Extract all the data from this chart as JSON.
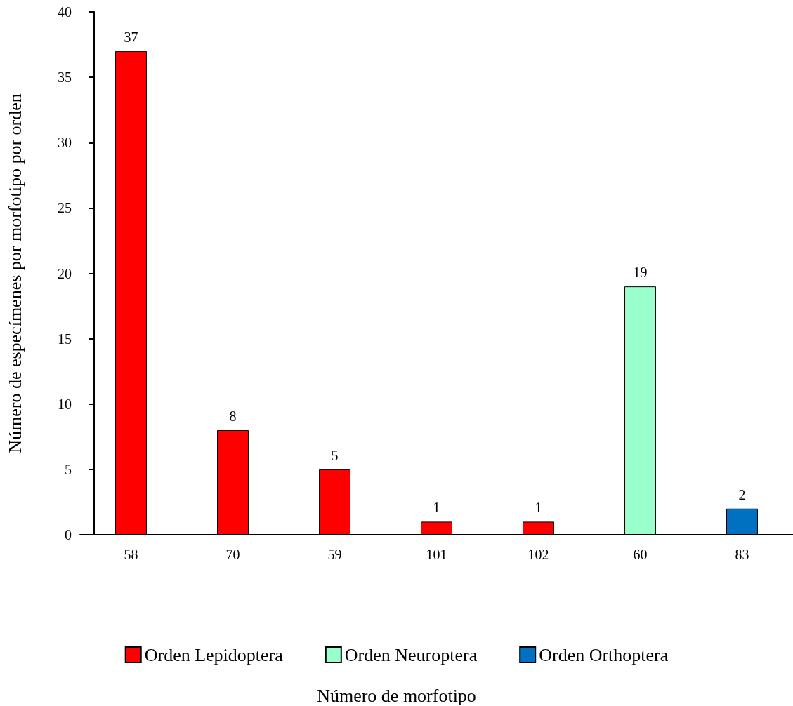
{
  "chart_data": {
    "type": "bar",
    "annotations": [
      "Número de morfotipo"
    ],
    "ylabel": "Número de especímenes por morfotipo por orden",
    "categories": [
      "58",
      "70",
      "59",
      "101",
      "102",
      "60",
      "83"
    ],
    "series": [
      {
        "name": "Orden Lepidoptera",
        "color": "#ff0000",
        "values": [
          37,
          8,
          5,
          1,
          1,
          null,
          null
        ]
      },
      {
        "name": "Orden Neuroptera",
        "color": "#99ffcc",
        "values": [
          null,
          null,
          null,
          null,
          null,
          19,
          null
        ]
      },
      {
        "name": "Orden Orthoptera",
        "color": "#0070c0",
        "values": [
          null,
          null,
          null,
          null,
          null,
          null,
          2
        ]
      }
    ],
    "ylim": [
      0,
      40
    ],
    "yticks": [
      0,
      5,
      10,
      15,
      20,
      25,
      30,
      35,
      40
    ],
    "grid": false,
    "legend": "bottom",
    "data_labels": true
  }
}
